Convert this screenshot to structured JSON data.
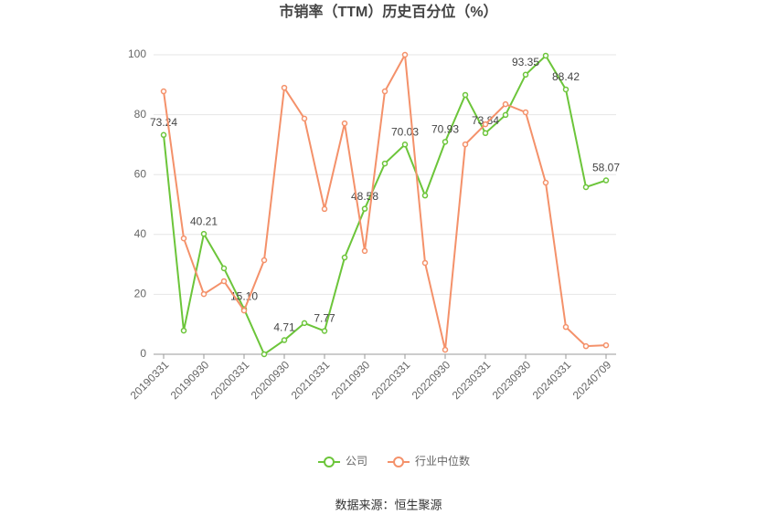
{
  "chart_data": {
    "type": "line",
    "title": "市销率（TTM）历史百分位（%）",
    "source": "数据来源：恒生聚源",
    "categories": [
      "20190331",
      null,
      "20190930",
      null,
      "20200331",
      null,
      "20200930",
      null,
      "20210331",
      null,
      "20210930",
      null,
      "20220331",
      null,
      "20220930",
      null,
      "20230331",
      null,
      "20230930",
      null,
      "20240331",
      null,
      "20240709"
    ],
    "series": [
      {
        "name": "公司",
        "color": "#6cc53a",
        "values": [
          73.24,
          7.9,
          40.21,
          28.7,
          15.1,
          0,
          4.71,
          10.4,
          7.77,
          32.3,
          48.58,
          63.7,
          70.03,
          53.0,
          70.93,
          86.6,
          73.84,
          79.9,
          93.35,
          99.7,
          88.42,
          55.8,
          58.07
        ],
        "value_labels": [
          "73.24",
          null,
          "40.21",
          null,
          "15.10",
          null,
          "4.71",
          null,
          "7.77",
          null,
          "48.58",
          null,
          "70.03",
          null,
          "70.93",
          null,
          "73.84",
          null,
          "93.35",
          null,
          "88.42",
          null,
          "58.07"
        ]
      },
      {
        "name": "行业中位数",
        "color": "#f4916a",
        "values": [
          87.8,
          38.7,
          20.1,
          24.4,
          14.6,
          31.4,
          89.0,
          78.7,
          48.5,
          77.1,
          34.5,
          87.8,
          100,
          30.5,
          1.5,
          70.1,
          76.8,
          83.5,
          80.8,
          57.3,
          9.1,
          2.7,
          3.0
        ]
      }
    ],
    "ylim": [
      0,
      100
    ],
    "yticks": [
      0,
      20,
      40,
      60,
      80,
      100
    ],
    "grid": true
  }
}
